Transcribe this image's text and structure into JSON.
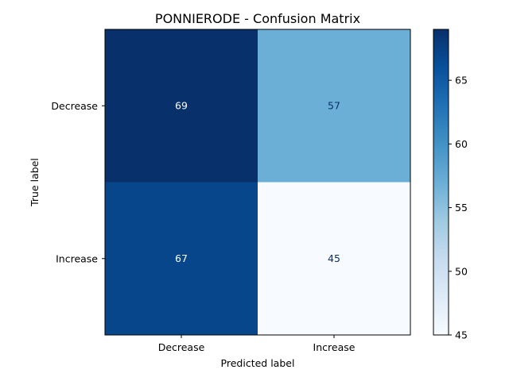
{
  "chart_data": {
    "type": "heatmap",
    "title": "PONNIERODE - Confusion Matrix",
    "xlabel": "Predicted label",
    "ylabel": "True label",
    "x_categories": [
      "Decrease",
      "Increase"
    ],
    "y_categories": [
      "Decrease",
      "Increase"
    ],
    "values": [
      [
        69,
        57
      ],
      [
        67,
        45
      ]
    ],
    "colormap": "Blues",
    "colorbar": {
      "range": [
        45,
        69
      ],
      "ticks": [
        45,
        50,
        55,
        60,
        65
      ],
      "tick_labels": [
        "45",
        "50",
        "55",
        "60",
        "65"
      ]
    },
    "grid": false,
    "cell_text_colors": {
      "dark": "#ffffff",
      "light": "#08306b"
    }
  }
}
